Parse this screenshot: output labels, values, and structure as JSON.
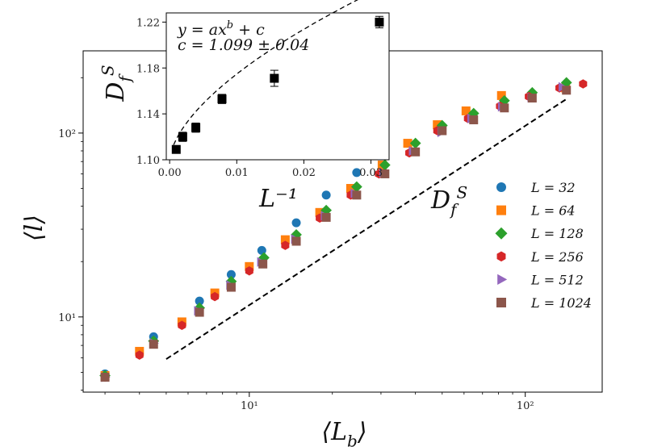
{
  "chart_data": [
    {
      "type": "scatter",
      "scale": "log-log",
      "xlabel": "⟨L_b⟩",
      "ylabel": "⟨l⟩",
      "xlim": [
        2.5,
        190
      ],
      "ylim": [
        3.9,
        280
      ],
      "xticks": [
        {
          "value": 10,
          "label": "10¹"
        },
        {
          "value": 100,
          "label": "10²"
        }
      ],
      "yticks": [
        {
          "value": 10,
          "label": "10¹"
        },
        {
          "value": 100,
          "label": "10²"
        }
      ],
      "annotation": "D_f^S",
      "reference_line": {
        "style": "dashed",
        "x": [
          5,
          140
        ],
        "y": [
          5.9,
          152
        ]
      },
      "legend_position": "right",
      "series": [
        {
          "name": "L = 32",
          "marker": "circle",
          "color": "#1f77b4",
          "x": [
            3,
            4.5,
            6.6,
            8.6,
            11.1,
            14.8,
            19,
            24.5
          ],
          "y": [
            4.9,
            7.8,
            12.2,
            17,
            23,
            32.5,
            46,
            61
          ]
        },
        {
          "name": "L = 64",
          "marker": "square",
          "color": "#ff7f0e",
          "x": [
            3,
            4,
            5.7,
            7.5,
            10,
            13.5,
            18,
            23.3,
            30.3,
            37.5,
            48,
            61,
            82,
            140
          ],
          "y": [
            4.8,
            6.5,
            9.4,
            13.5,
            18.8,
            26.3,
            37,
            50,
            67,
            88,
            111,
            132,
            160,
            176
          ]
        },
        {
          "name": "L = 128",
          "marker": "diamond",
          "color": "#2ca02c",
          "x": [
            3,
            4.5,
            6.6,
            8.6,
            11.3,
            14.8,
            19,
            24.5,
            31,
            40,
            50,
            65,
            84,
            106,
            141
          ],
          "y": [
            4.8,
            7.4,
            11.2,
            15.6,
            21,
            28,
            38,
            51,
            67,
            88,
            110,
            128,
            150,
            166,
            188
          ]
        },
        {
          "name": "L = 256",
          "marker": "hexagon",
          "color": "#d62728",
          "x": [
            3,
            4,
            5.7,
            7.5,
            10,
            13.5,
            18,
            23.3,
            29.5,
            38,
            48,
            62,
            81,
            103,
            133,
            162
          ],
          "y": [
            4.7,
            6.2,
            9,
            12.9,
            17.8,
            24.5,
            34.5,
            46,
            60,
            78,
            103,
            120,
            140,
            158,
            176,
            185
          ]
        },
        {
          "name": "L = 512",
          "marker": "triangle-right",
          "color": "#9467bd",
          "x": [
            3,
            4.5,
            6.5,
            8.5,
            11,
            14.6,
            18.7,
            24,
            30.5,
            39,
            49.5,
            63.5,
            82,
            105,
            136
          ],
          "y": [
            4.7,
            7.2,
            10.8,
            14.9,
            19.9,
            26.5,
            35.5,
            47,
            61,
            80,
            101,
            120,
            139,
            156,
            178
          ]
        },
        {
          "name": "L = 1024",
          "marker": "square",
          "color": "#8c564b",
          "x": [
            3,
            4.5,
            6.6,
            8.6,
            11.2,
            14.8,
            19,
            24.5,
            31,
            40,
            50,
            65,
            84,
            106,
            141
          ],
          "y": [
            4.7,
            7.1,
            10.6,
            14.5,
            19.4,
            25.8,
            34.8,
            46,
            60,
            79,
            103,
            118,
            137,
            155,
            171
          ]
        }
      ]
    },
    {
      "type": "scatter",
      "role": "inset",
      "xlabel": "L⁻¹",
      "ylabel": "D_f^S",
      "xlim": [
        -0.0005,
        0.0327
      ],
      "ylim": [
        1.1,
        1.228
      ],
      "xticks": [
        {
          "value": 0.0,
          "label": "0.00"
        },
        {
          "value": 0.01,
          "label": "0.01"
        },
        {
          "value": 0.02,
          "label": "0.02"
        },
        {
          "value": 0.03,
          "label": "0.03"
        }
      ],
      "yticks": [
        {
          "value": 1.1,
          "label": "1.10"
        },
        {
          "value": 1.14,
          "label": "1.14"
        },
        {
          "value": 1.18,
          "label": "1.18"
        },
        {
          "value": 1.22,
          "label": "1.22"
        }
      ],
      "annotation_lines": [
        "y = ax^b + c",
        "c = 1.099 ± 0.04"
      ],
      "fit": {
        "form": "y = a x^b + c",
        "a": 1.2,
        "b": 0.6,
        "c": 1.099
      },
      "series": [
        {
          "name": "D_f^S",
          "marker": "square",
          "color": "#000000",
          "x": [
            0.00098,
            0.00195,
            0.0039,
            0.0078,
            0.0156,
            0.03125
          ],
          "y": [
            1.109,
            1.12,
            1.128,
            1.153,
            1.171,
            1.22
          ],
          "yerr": [
            0.003,
            0.004,
            0.004,
            0.004,
            0.007,
            0.005
          ]
        }
      ]
    }
  ]
}
